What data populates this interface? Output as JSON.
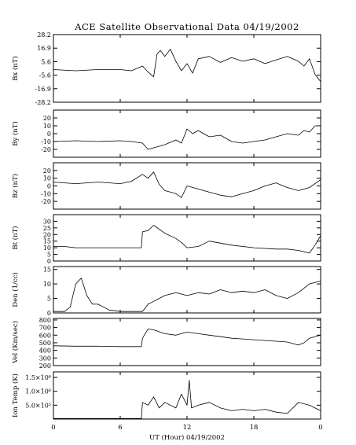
{
  "figure": {
    "title": "ACE Satellite Observational Data   04/19/2002",
    "xlabel": "UT (Hour)   04/19/2002",
    "xticks": [
      "0",
      "6",
      "12",
      "18",
      "0"
    ]
  },
  "chart_data": [
    {
      "type": "line",
      "name": "Bx",
      "ylabel": "Bx (nT)",
      "ylim": [
        -28.2,
        28.2
      ],
      "yticks": [
        28.2,
        16.9,
        5.6,
        -5.6,
        -16.9,
        -28.2
      ],
      "ytick_labels": [
        "28.2",
        "16.9",
        "5.6",
        "-5.6",
        "-16.9",
        "-28.2"
      ],
      "x": [
        0,
        2,
        4,
        6,
        7,
        8,
        8.5,
        9,
        9.3,
        9.6,
        10,
        10.5,
        11,
        11.5,
        12,
        12.5,
        13,
        14,
        15,
        16,
        17,
        18,
        19,
        20,
        21,
        22,
        22.5,
        23,
        23.5,
        24
      ],
      "values": [
        -1,
        -2,
        -1,
        -1,
        -2,
        2,
        -3,
        -7,
        12,
        15,
        10,
        16,
        6,
        -2,
        4,
        -4,
        8,
        10,
        5,
        9,
        6,
        8,
        4,
        7,
        10,
        6,
        2,
        8,
        -5,
        -11
      ],
      "grid": false
    },
    {
      "type": "line",
      "name": "By",
      "ylabel": "By (nT)",
      "ylim": [
        -30,
        30
      ],
      "yticks": [
        20,
        10,
        0,
        -10,
        -20
      ],
      "ytick_labels": [
        "20",
        "10",
        "0",
        "-10",
        "-20"
      ],
      "x": [
        0,
        2,
        4,
        6,
        7,
        8,
        8.5,
        9,
        10,
        11,
        11.5,
        12,
        12.5,
        13,
        14,
        15,
        16,
        17,
        18,
        19,
        20,
        21,
        22,
        22.5,
        23,
        23.5,
        24
      ],
      "values": [
        -10,
        -9,
        -10,
        -9,
        -10,
        -12,
        -20,
        -18,
        -14,
        -8,
        -12,
        6,
        0,
        4,
        -4,
        -2,
        -10,
        -12,
        -10,
        -8,
        -4,
        0,
        -2,
        4,
        2,
        10,
        10
      ],
      "grid": false
    },
    {
      "type": "line",
      "name": "Bz",
      "ylabel": "Bz (nT)",
      "ylim": [
        -30,
        30
      ],
      "yticks": [
        20,
        10,
        0,
        -10,
        -20
      ],
      "ytick_labels": [
        "20",
        "10",
        "0",
        "-10",
        "-20"
      ],
      "x": [
        0,
        2,
        4,
        6,
        7,
        8,
        8.5,
        9,
        9.5,
        10,
        11,
        11.5,
        12,
        13,
        14,
        15,
        16,
        17,
        18,
        19,
        20,
        21,
        22,
        23,
        24
      ],
      "values": [
        5,
        3,
        5,
        3,
        6,
        15,
        10,
        18,
        2,
        -6,
        -10,
        -15,
        0,
        -4,
        -8,
        -12,
        -14,
        -10,
        -6,
        0,
        4,
        -2,
        -6,
        -2,
        8
      ],
      "grid": false
    },
    {
      "type": "line",
      "name": "Bt",
      "ylabel": "Bt (nT)",
      "ylim": [
        0,
        35
      ],
      "yticks": [
        30,
        25,
        20,
        15,
        10,
        5,
        0
      ],
      "ytick_labels": [
        "30",
        "25",
        "20",
        "15",
        "10",
        "5",
        "0"
      ],
      "x": [
        0,
        1,
        2,
        4,
        6,
        7,
        7.9,
        8,
        8.5,
        9,
        10,
        11,
        11.5,
        12,
        13,
        14,
        16,
        18,
        20,
        21,
        22,
        23,
        23.5,
        24
      ],
      "values": [
        11,
        11,
        10,
        10,
        10,
        10,
        10,
        22,
        23,
        27,
        21,
        17,
        14,
        10,
        11,
        15,
        12,
        10,
        9,
        9,
        8,
        6,
        12,
        19
      ],
      "grid": false
    },
    {
      "type": "line",
      "name": "Den",
      "ylabel": "Den (1/cc)",
      "ylim": [
        0,
        16
      ],
      "yticks": [
        15,
        10,
        5,
        0
      ],
      "ytick_labels": [
        "15",
        "10",
        "5",
        "0"
      ],
      "x": [
        0,
        1,
        1.5,
        2,
        2.5,
        3,
        3.5,
        4,
        5,
        6,
        7,
        8,
        8.5,
        9,
        10,
        11,
        12,
        13,
        14,
        15,
        16,
        17,
        18,
        19,
        20,
        21,
        22,
        23,
        24
      ],
      "values": [
        0.5,
        0.5,
        2,
        10,
        12,
        6,
        3,
        3,
        1,
        0.5,
        0.5,
        0.5,
        3,
        4,
        6,
        7,
        6,
        7,
        6.5,
        8,
        7,
        7.5,
        7,
        8,
        6,
        5,
        7,
        10,
        11
      ],
      "grid": false
    },
    {
      "type": "line",
      "name": "Vel",
      "ylabel": "Vel (Km/sec)",
      "ylim": [
        200,
        820
      ],
      "yticks": [
        800,
        700,
        600,
        500,
        400,
        300,
        200
      ],
      "ytick_labels": [
        "800",
        "700",
        "600",
        "500",
        "400",
        "300",
        "200"
      ],
      "x": [
        0,
        2,
        4,
        6,
        7.9,
        8,
        8.5,
        9,
        10,
        11,
        12,
        13,
        14,
        15,
        16,
        17,
        18,
        19,
        20,
        21,
        22,
        22.5,
        23,
        24
      ],
      "values": [
        460,
        455,
        455,
        450,
        450,
        560,
        680,
        670,
        620,
        600,
        640,
        620,
        600,
        580,
        560,
        550,
        540,
        530,
        520,
        510,
        470,
        500,
        560,
        600
      ],
      "grid": false
    },
    {
      "type": "line",
      "name": "Ion Temp",
      "ylabel": "Ion Temp (K)",
      "ylim": [
        0,
        1700000
      ],
      "yticks": [
        1500000,
        1000000,
        500000
      ],
      "ytick_labels": [
        "1.5×10⁶",
        "1.0×10⁶",
        "5.0×10⁵"
      ],
      "x": [
        0,
        2,
        4,
        6,
        7.9,
        8,
        8.5,
        9,
        9.5,
        10,
        11,
        11.5,
        12,
        12.2,
        12.4,
        13,
        14,
        15,
        16,
        17,
        18,
        19,
        20,
        21,
        22,
        23,
        24
      ],
      "values": [
        20000,
        20000,
        20000,
        20000,
        20000,
        600000,
        500000,
        800000,
        400000,
        600000,
        400000,
        900000,
        500000,
        1400000,
        400000,
        500000,
        600000,
        400000,
        300000,
        350000,
        300000,
        350000,
        250000,
        200000,
        600000,
        500000,
        300000
      ],
      "grid": false
    }
  ]
}
